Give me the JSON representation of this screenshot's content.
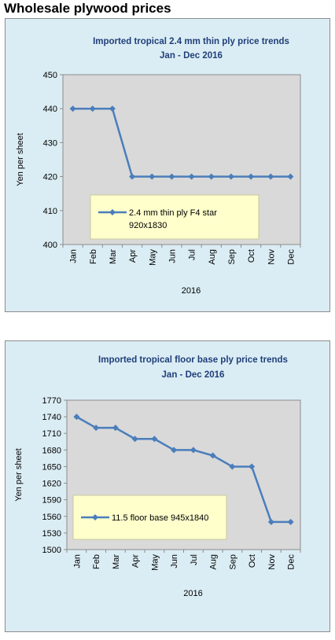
{
  "page_title": "Wholesale plywood prices",
  "colors": {
    "series": "#4a7ebb",
    "plot_bg": "#d9d9d9",
    "panel_bg": "#dbedf4",
    "legend_bg": "#ffffcc",
    "title": "#1f3f7a"
  },
  "chart_data": [
    {
      "type": "line",
      "title": "Imported tropical 2.4 mm thin ply price trends",
      "subtitle": "Jan - Dec 2016",
      "xlabel": "2016",
      "ylabel": "Yen per sheet",
      "categories": [
        "Jan",
        "Feb",
        "Mar",
        "Apr",
        "May",
        "Jun",
        "Jul",
        "Aug",
        "Sep",
        "Oct",
        "Nov",
        "Dec"
      ],
      "ylim": [
        400,
        450
      ],
      "yticks": [
        400,
        410,
        420,
        430,
        440,
        450
      ],
      "grid": false,
      "legend_position": "bottom-center",
      "series": [
        {
          "name": "2.4 mm thin ply F4 star 920x1830",
          "name_lines": [
            "2.4 mm thin ply F4 star",
            "920x1830"
          ],
          "values": [
            440,
            440,
            440,
            420,
            420,
            420,
            420,
            420,
            420,
            420,
            420,
            420
          ]
        }
      ]
    },
    {
      "type": "line",
      "title": "Imported tropical floor base ply price trends",
      "subtitle": "Jan - Dec 2016",
      "xlabel": "2016",
      "ylabel": "Yen per sheet",
      "categories": [
        "Jan",
        "Feb",
        "Mar",
        "Apr",
        "May",
        "Jun",
        "Jul",
        "Aug",
        "Sep",
        "Oct",
        "Nov",
        "Dec"
      ],
      "ylim": [
        1500,
        1770
      ],
      "yticks": [
        1500,
        1530,
        1560,
        1590,
        1620,
        1650,
        1680,
        1710,
        1740,
        1770
      ],
      "grid": false,
      "legend_position": "bottom-left",
      "series": [
        {
          "name": "11.5 floor base 945x1840",
          "name_lines": [
            "11.5 floor base 945x1840"
          ],
          "values": [
            1740,
            1720,
            1720,
            1700,
            1700,
            1680,
            1680,
            1670,
            1650,
            1650,
            1550,
            1550
          ]
        }
      ]
    }
  ]
}
